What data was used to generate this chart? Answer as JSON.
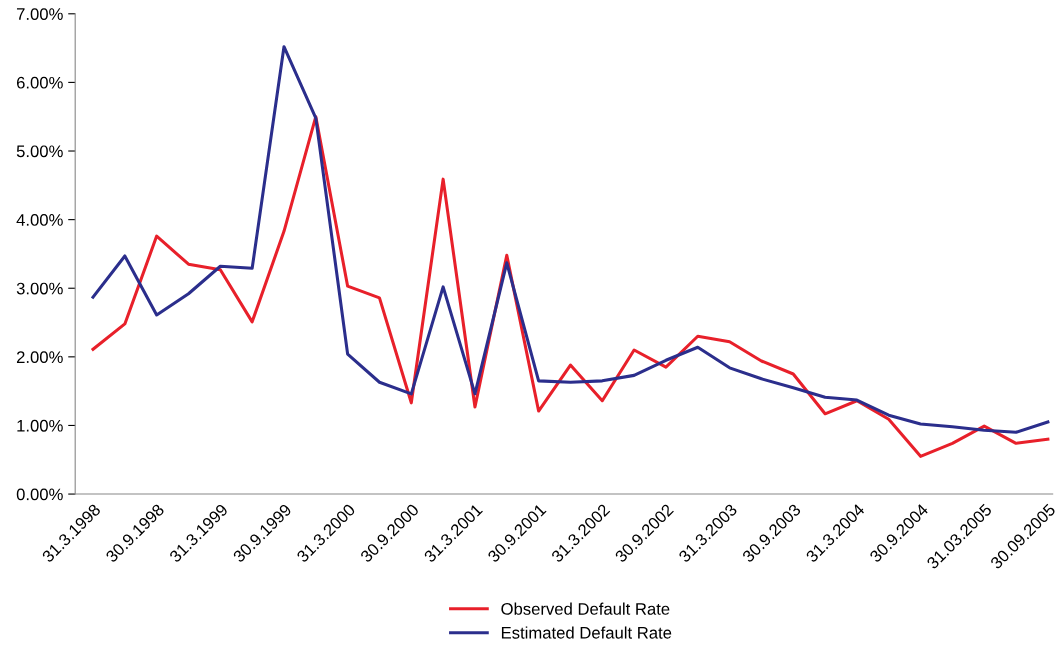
{
  "chart_data": {
    "type": "line",
    "categories": [
      "31.3.1998",
      null,
      "30.9.1998",
      null,
      "31.3.1999",
      null,
      "30.9.1999",
      null,
      "31.3.2000",
      null,
      "30.9.2000",
      null,
      "31.3.2001",
      null,
      "30.9.2001",
      null,
      "31.3.2002",
      null,
      "30.9.2002",
      null,
      "31.3.2003",
      null,
      "30.9.2003",
      null,
      "31.3.2004",
      null,
      "30.9.2004",
      null,
      "31.03.2005",
      null,
      "30.09.2005"
    ],
    "series": [
      {
        "name": "Observed Default Rate",
        "color": "#e8202a",
        "values": [
          2.11,
          2.48,
          3.76,
          3.35,
          3.27,
          2.51,
          3.83,
          5.5,
          3.03,
          2.86,
          1.33,
          4.59,
          1.27,
          3.48,
          1.21,
          1.88,
          1.36,
          2.1,
          1.85,
          2.3,
          2.22,
          1.94,
          1.75,
          1.17,
          1.36,
          1.09,
          0.55,
          0.74,
          0.99,
          0.74,
          0.8
        ]
      },
      {
        "name": "Estimated Default Rate",
        "color": "#2b2e8c",
        "values": [
          2.87,
          3.47,
          2.61,
          2.92,
          3.32,
          3.29,
          6.52,
          5.48,
          2.04,
          1.63,
          1.46,
          3.02,
          1.46,
          3.37,
          1.65,
          1.63,
          1.65,
          1.73,
          1.95,
          2.14,
          1.84,
          1.68,
          1.55,
          1.41,
          1.37,
          1.15,
          1.02,
          0.98,
          0.93,
          0.9,
          1.05
        ]
      }
    ],
    "ylim": [
      0,
      7
    ],
    "yticks": [
      {
        "value": 0,
        "label": "0.00%"
      },
      {
        "value": 1,
        "label": "1.00%"
      },
      {
        "value": 2,
        "label": "2.00%"
      },
      {
        "value": 3,
        "label": "3.00%"
      },
      {
        "value": 4,
        "label": "4.00%"
      },
      {
        "value": 5,
        "label": "5.00%"
      },
      {
        "value": 6,
        "label": "6.00%"
      },
      {
        "value": 7,
        "label": "7.00%"
      }
    ],
    "grid": false,
    "legend": "bottom",
    "marker": "none",
    "line_style": "solid"
  }
}
